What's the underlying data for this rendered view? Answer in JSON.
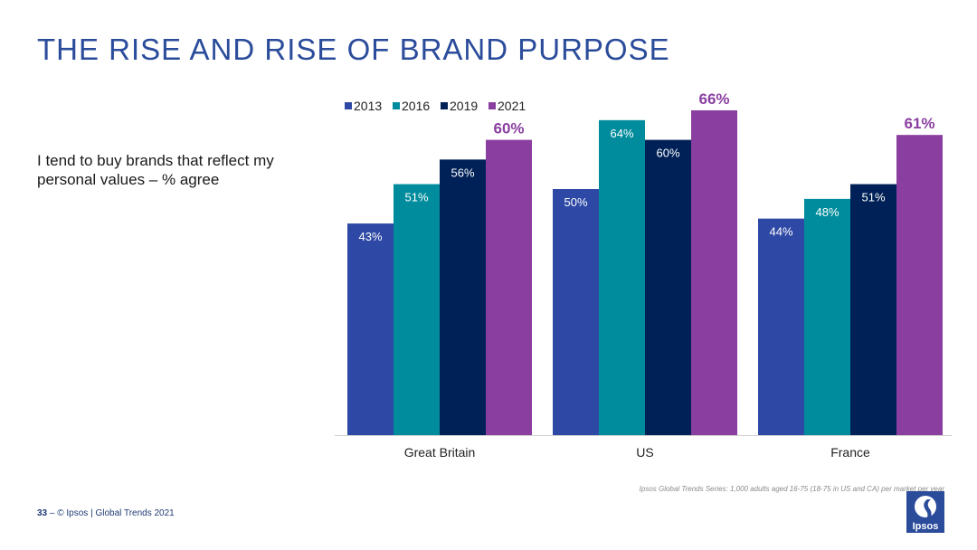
{
  "header": {
    "title": "THE RISE AND RISE OF BRAND PURPOSE"
  },
  "question": "I tend to buy brands that reflect my personal values – % agree",
  "chart_data": {
    "type": "bar",
    "title": "THE RISE AND RISE OF BRAND PURPOSE",
    "xlabel": "",
    "ylabel": "% agree",
    "ylim": [
      0,
      66
    ],
    "grid": false,
    "legend_position": "top",
    "categories": [
      "Great Britain",
      "US",
      "France"
    ],
    "series": [
      {
        "name": "2013",
        "color": "#2E49A5",
        "values": [
          43,
          50,
          44
        ],
        "labels": [
          "43%",
          "50%",
          "44%"
        ]
      },
      {
        "name": "2016",
        "color": "#008C9C",
        "values": [
          51,
          64,
          48
        ],
        "labels": [
          "51%",
          "64%",
          "48%"
        ]
      },
      {
        "name": "2019",
        "color": "#002157",
        "values": [
          56,
          60,
          51
        ],
        "labels": [
          "56%",
          "60%",
          "51%"
        ]
      },
      {
        "name": "2021",
        "color": "#8A3FA0",
        "values": [
          60,
          66,
          61
        ],
        "labels": [
          "60%",
          "66%",
          "61%"
        ]
      }
    ]
  },
  "footer": {
    "page": "33",
    "text": "– © Ipsos | Global Trends 2021"
  },
  "source": "Ipsos Global Trends Series: 1,000 adults aged 16-75 (18-75 in US and CA) per market per year",
  "logo": {
    "text": "Ipsos",
    "color": "#2B4C9B"
  }
}
